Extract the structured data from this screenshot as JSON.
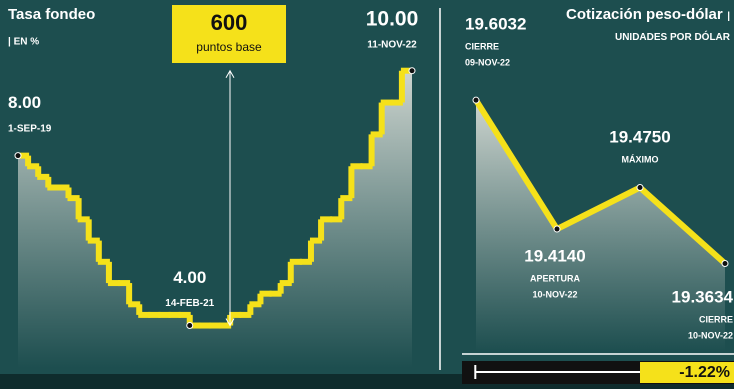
{
  "chart_data": [
    {
      "type": "step",
      "title": "Tasa fondeo",
      "subtitle": "| EN %",
      "categories": [
        "1-SEP-19",
        null,
        null,
        null,
        null,
        null,
        null,
        null,
        null,
        null,
        null,
        null,
        null,
        null,
        null,
        null,
        null,
        "14-FEB-21",
        null,
        null,
        null,
        null,
        null,
        null,
        null,
        null,
        null,
        null,
        null,
        null,
        null,
        null,
        null,
        null,
        null,
        null,
        null,
        null,
        "11-NOV-22"
      ],
      "values": [
        8,
        7.75,
        7.5,
        7.25,
        7.25,
        7,
        6.5,
        6,
        5.5,
        5,
        5,
        4.5,
        4.25,
        4.25,
        4.25,
        4.25,
        4.25,
        4,
        4,
        4,
        4,
        4.25,
        4.25,
        4.5,
        4.75,
        4.75,
        5,
        5.5,
        5.5,
        6,
        6.5,
        6.5,
        7,
        7.75,
        7.75,
        8.5,
        9.25,
        9.25,
        10
      ],
      "value_labels": [
        "8.00",
        null,
        null,
        null,
        null,
        null,
        null,
        null,
        null,
        null,
        null,
        null,
        null,
        null,
        null,
        null,
        null,
        "4.00",
        null,
        null,
        null,
        null,
        null,
        null,
        null,
        null,
        null,
        null,
        null,
        null,
        null,
        null,
        null,
        null,
        null,
        null,
        null,
        null,
        "10.00"
      ],
      "color": "#f5e11a",
      "ylim": [
        3,
        11.5
      ],
      "annotation": {
        "value": 600,
        "text": "puntos base"
      }
    },
    {
      "type": "line",
      "title": "Cotización peso-dólar",
      "subtitle": "| UNIDADES POR DÓLAR",
      "categories": [
        "CIERRE",
        "APERTURA",
        "MÁXIMO",
        "CIERRE"
      ],
      "dates": [
        "09-NOV-22",
        "10-NOV-22",
        null,
        "10-NOV-22"
      ],
      "values": [
        19.6032,
        19.414,
        19.475,
        19.3634
      ],
      "value_labels": [
        "19.6032",
        "19.4140",
        "19.4750",
        "19.3634"
      ],
      "color": "#f5e11a",
      "ylim": [
        19.21,
        19.74
      ],
      "change": {
        "value": -1.22,
        "label": "-1.22%"
      }
    }
  ]
}
